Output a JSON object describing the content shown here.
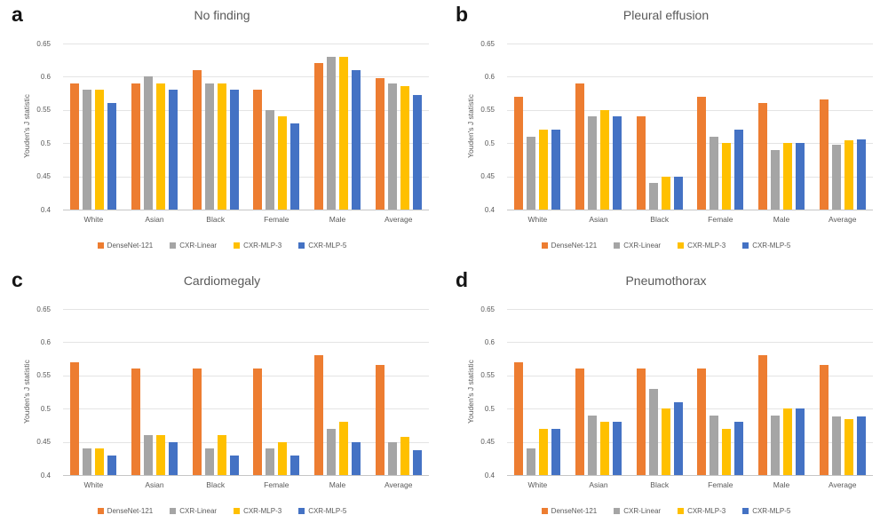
{
  "figure": {
    "description": "Four-panel bar chart figure comparing model fairness performance",
    "y_axis_title": "Youden's J statistic"
  },
  "colors": {
    "densenet": "#ED7D31",
    "cxr_linear": "#A5A5A5",
    "cxr_mlp3": "#FFC000",
    "cxr_mlp5": "#4472C4",
    "gridline": "#e4e4e4",
    "axis_text": "#595959"
  },
  "chart_data": [
    {
      "type": "bar",
      "panel_letter": "a",
      "title": "No finding",
      "ylabel": "Youden's J statistic",
      "ylim": [
        0.4,
        0.65
      ],
      "yticks": [
        0.4,
        0.45,
        0.5,
        0.55,
        0.6,
        0.65
      ],
      "grid": true,
      "legend_position": "bottom",
      "categories": [
        "White",
        "Asian",
        "Black",
        "Female",
        "Male",
        "Average"
      ],
      "series": [
        {
          "name": "DenseNet-121",
          "color": "#ED7D31",
          "values": [
            0.59,
            0.59,
            0.61,
            0.58,
            0.62,
            0.598
          ]
        },
        {
          "name": "CXR-Linear",
          "color": "#A5A5A5",
          "values": [
            0.58,
            0.6,
            0.59,
            0.55,
            0.63,
            0.59
          ]
        },
        {
          "name": "CXR-MLP-3",
          "color": "#FFC000",
          "values": [
            0.58,
            0.59,
            0.59,
            0.54,
            0.63,
            0.586
          ]
        },
        {
          "name": "CXR-MLP-5",
          "color": "#4472C4",
          "values": [
            0.56,
            0.58,
            0.58,
            0.53,
            0.61,
            0.572
          ]
        }
      ]
    },
    {
      "type": "bar",
      "panel_letter": "b",
      "title": "Pleural effusion",
      "ylabel": "Youden's J statistic",
      "ylim": [
        0.4,
        0.65
      ],
      "yticks": [
        0.4,
        0.45,
        0.5,
        0.55,
        0.6,
        0.65
      ],
      "grid": true,
      "legend_position": "bottom",
      "categories": [
        "White",
        "Asian",
        "Black",
        "Female",
        "Male",
        "Average"
      ],
      "series": [
        {
          "name": "DenseNet-121",
          "color": "#ED7D31",
          "values": [
            0.57,
            0.59,
            0.54,
            0.57,
            0.56,
            0.566
          ]
        },
        {
          "name": "CXR-Linear",
          "color": "#A5A5A5",
          "values": [
            0.51,
            0.54,
            0.44,
            0.51,
            0.49,
            0.498
          ]
        },
        {
          "name": "CXR-MLP-3",
          "color": "#FFC000",
          "values": [
            0.52,
            0.55,
            0.45,
            0.5,
            0.5,
            0.504
          ]
        },
        {
          "name": "CXR-MLP-5",
          "color": "#4472C4",
          "values": [
            0.52,
            0.54,
            0.45,
            0.52,
            0.5,
            0.506
          ]
        }
      ]
    },
    {
      "type": "bar",
      "panel_letter": "c",
      "title": "Cardiomegaly",
      "ylabel": "Youden's J statistic",
      "ylim": [
        0.4,
        0.65
      ],
      "yticks": [
        0.4,
        0.45,
        0.5,
        0.55,
        0.6,
        0.65
      ],
      "grid": true,
      "legend_position": "bottom",
      "categories": [
        "White",
        "Asian",
        "Black",
        "Female",
        "Male",
        "Average"
      ],
      "series": [
        {
          "name": "DenseNet-121",
          "color": "#ED7D31",
          "values": [
            0.57,
            0.56,
            0.56,
            0.56,
            0.58,
            0.566
          ]
        },
        {
          "name": "CXR-Linear",
          "color": "#A5A5A5",
          "values": [
            0.44,
            0.46,
            0.44,
            0.44,
            0.47,
            0.45
          ]
        },
        {
          "name": "CXR-MLP-3",
          "color": "#FFC000",
          "values": [
            0.44,
            0.46,
            0.46,
            0.45,
            0.48,
            0.458
          ]
        },
        {
          "name": "CXR-MLP-5",
          "color": "#4472C4",
          "values": [
            0.43,
            0.45,
            0.43,
            0.43,
            0.45,
            0.438
          ]
        }
      ]
    },
    {
      "type": "bar",
      "panel_letter": "d",
      "title": "Pneumothorax",
      "ylabel": "Youden's J statistic",
      "ylim": [
        0.4,
        0.65
      ],
      "yticks": [
        0.4,
        0.45,
        0.5,
        0.55,
        0.6,
        0.65
      ],
      "grid": true,
      "legend_position": "bottom",
      "categories": [
        "White",
        "Asian",
        "Black",
        "Female",
        "Male",
        "Average"
      ],
      "series": [
        {
          "name": "DenseNet-121",
          "color": "#ED7D31",
          "values": [
            0.57,
            0.56,
            0.56,
            0.56,
            0.58,
            0.566
          ]
        },
        {
          "name": "CXR-Linear",
          "color": "#A5A5A5",
          "values": [
            0.44,
            0.49,
            0.53,
            0.49,
            0.49,
            0.488
          ]
        },
        {
          "name": "CXR-MLP-3",
          "color": "#FFC000",
          "values": [
            0.47,
            0.48,
            0.5,
            0.47,
            0.5,
            0.484
          ]
        },
        {
          "name": "CXR-MLP-5",
          "color": "#4472C4",
          "values": [
            0.47,
            0.48,
            0.51,
            0.48,
            0.5,
            0.488
          ]
        }
      ]
    }
  ]
}
